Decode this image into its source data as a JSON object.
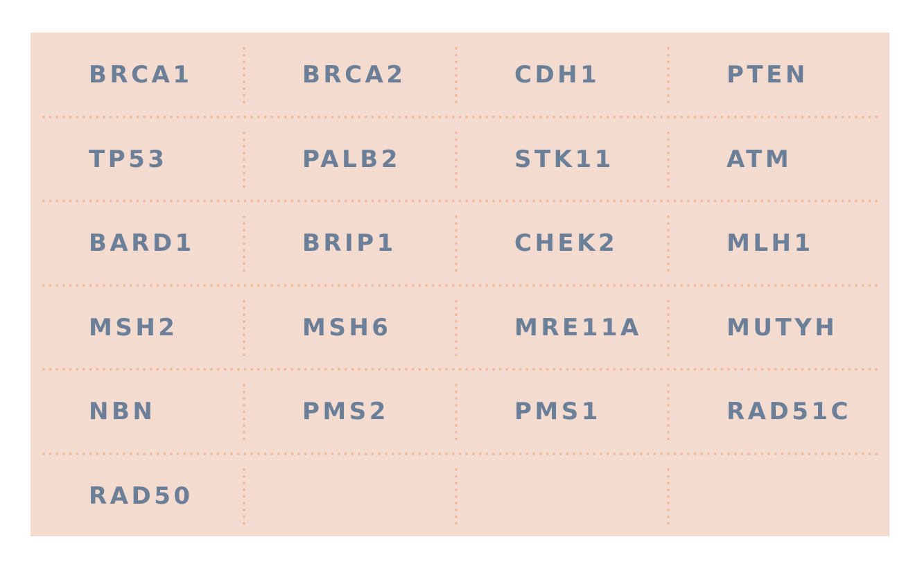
{
  "colors": {
    "panel_background": "#f3dccf",
    "divider": "#f0b99a",
    "text": "#6b7f98"
  },
  "columns": 4,
  "genes": [
    "BRCA1",
    "BRCA2",
    "CDH1",
    "PTEN",
    "TP53",
    "PALB2",
    "STK11",
    "ATM",
    "BARD1",
    "BRIP1",
    "CHEK2",
    "MLH1",
    "MSH2",
    "MSH6",
    "MRE11A",
    "MUTYH",
    "NBN",
    "PMS2",
    "PMS1",
    "RAD51C",
    "RAD50"
  ]
}
